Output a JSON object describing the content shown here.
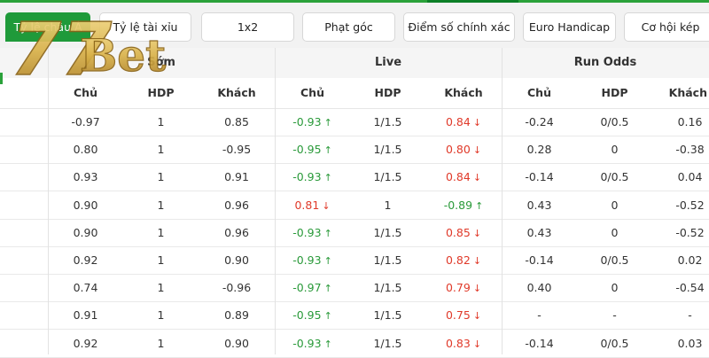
{
  "tabs": [
    {
      "label": "Tỷ lệ châu Á",
      "active": true
    },
    {
      "label": "Tỷ lệ tài xỉu",
      "active": false
    },
    {
      "label": "1x2",
      "active": false
    },
    {
      "label": "Phạt góc",
      "active": false
    },
    {
      "label": "Điểm số chính xác",
      "active": false
    },
    {
      "label": "Euro Handicap",
      "active": false
    },
    {
      "label": "Cơ hội kép",
      "active": false
    }
  ],
  "logo": {
    "text": "77Bet",
    "color": "#d9b24a"
  },
  "groups": {
    "early": "Sớm",
    "live": "Live",
    "run": "Run Odds"
  },
  "columns": {
    "home": "Chủ",
    "hdp": "HDP",
    "away": "Khách"
  },
  "colors": {
    "accent": "#1f9a3a",
    "up": "#2a9a3a",
    "down": "#e03a2a"
  },
  "rows": [
    {
      "early": [
        "-0.97",
        "1",
        "0.85"
      ],
      "live": [
        {
          "v": "-0.93",
          "dir": "up"
        },
        {
          "v": "1/1.5"
        },
        {
          "v": "0.84",
          "dir": "down"
        }
      ],
      "run": [
        "-0.24",
        "0/0.5",
        "0.16"
      ]
    },
    {
      "early": [
        "0.80",
        "1",
        "-0.95"
      ],
      "live": [
        {
          "v": "-0.95",
          "dir": "up"
        },
        {
          "v": "1/1.5"
        },
        {
          "v": "0.80",
          "dir": "down"
        }
      ],
      "run": [
        "0.28",
        "0",
        "-0.38"
      ]
    },
    {
      "early": [
        "0.93",
        "1",
        "0.91"
      ],
      "live": [
        {
          "v": "-0.93",
          "dir": "up"
        },
        {
          "v": "1/1.5"
        },
        {
          "v": "0.84",
          "dir": "down"
        }
      ],
      "run": [
        "-0.14",
        "0/0.5",
        "0.04"
      ]
    },
    {
      "early": [
        "0.90",
        "1",
        "0.96"
      ],
      "live": [
        {
          "v": "0.81",
          "dir": "down"
        },
        {
          "v": "1"
        },
        {
          "v": "-0.89",
          "dir": "up"
        }
      ],
      "run": [
        "0.43",
        "0",
        "-0.52"
      ]
    },
    {
      "early": [
        "0.90",
        "1",
        "0.96"
      ],
      "live": [
        {
          "v": "-0.93",
          "dir": "up"
        },
        {
          "v": "1/1.5"
        },
        {
          "v": "0.85",
          "dir": "down"
        }
      ],
      "run": [
        "0.43",
        "0",
        "-0.52"
      ]
    },
    {
      "early": [
        "0.92",
        "1",
        "0.90"
      ],
      "live": [
        {
          "v": "-0.93",
          "dir": "up"
        },
        {
          "v": "1/1.5"
        },
        {
          "v": "0.82",
          "dir": "down"
        }
      ],
      "run": [
        "-0.14",
        "0/0.5",
        "0.02"
      ]
    },
    {
      "early": [
        "0.74",
        "1",
        "-0.96"
      ],
      "live": [
        {
          "v": "-0.97",
          "dir": "up"
        },
        {
          "v": "1/1.5"
        },
        {
          "v": "0.79",
          "dir": "down"
        }
      ],
      "run": [
        "0.40",
        "0",
        "-0.54"
      ]
    },
    {
      "early": [
        "0.91",
        "1",
        "0.89"
      ],
      "live": [
        {
          "v": "-0.95",
          "dir": "up"
        },
        {
          "v": "1/1.5"
        },
        {
          "v": "0.75",
          "dir": "down"
        }
      ],
      "run": [
        "-",
        "-",
        "-"
      ]
    },
    {
      "early": [
        "0.92",
        "1",
        "0.90"
      ],
      "live": [
        {
          "v": "-0.93",
          "dir": "up"
        },
        {
          "v": "1/1.5"
        },
        {
          "v": "0.83",
          "dir": "down"
        }
      ],
      "run": [
        "-0.14",
        "0/0.5",
        "0.03"
      ]
    }
  ]
}
